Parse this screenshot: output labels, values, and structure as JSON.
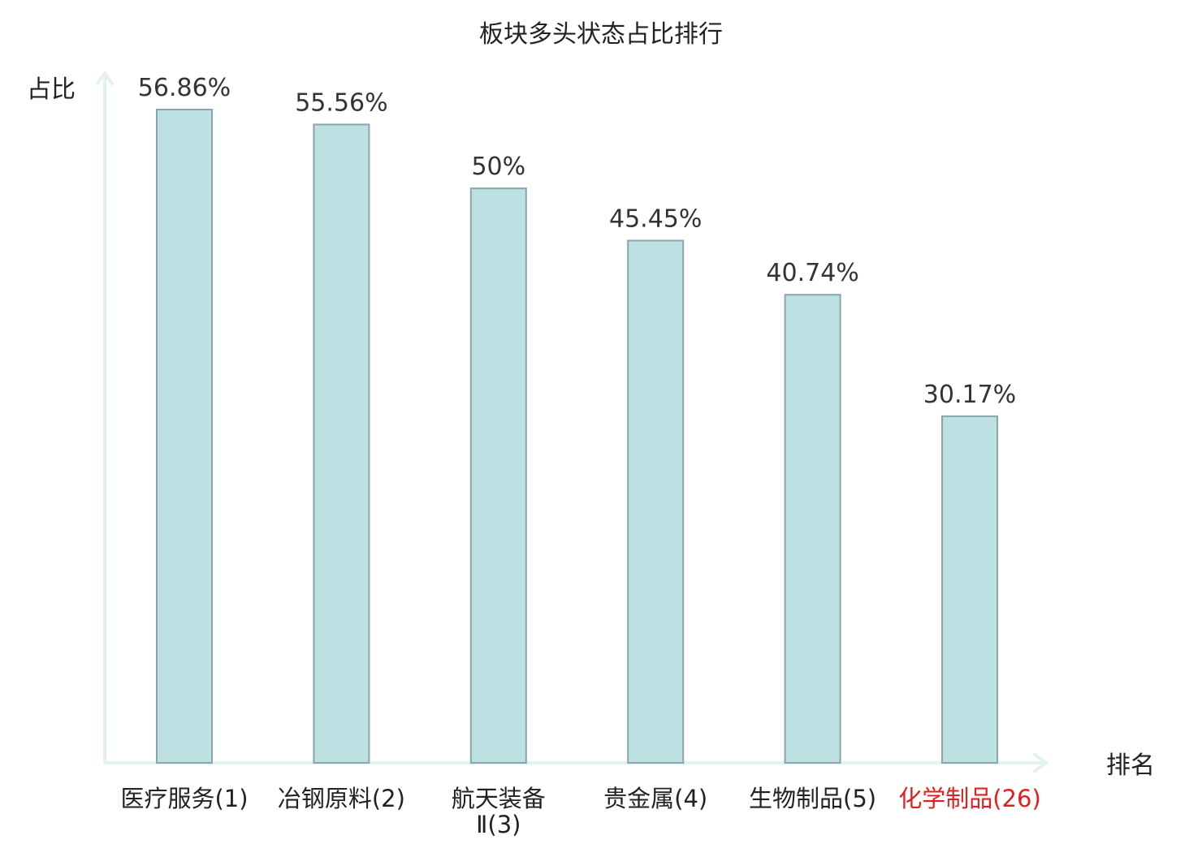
{
  "chart_data": {
    "type": "bar",
    "title": "板块多头状态占比排行",
    "ylabel": "占比",
    "xlabel": "排名",
    "ylim": [
      0,
      60
    ],
    "grid": false,
    "legend": "none",
    "categories": [
      {
        "name": "医疗服务",
        "rank": "(1)"
      },
      {
        "name": "冶钢原料",
        "rank": "(2)"
      },
      {
        "name": "航天装备",
        "rank": "Ⅱ(3)"
      },
      {
        "name": "贵金属",
        "rank": "(4)"
      },
      {
        "name": "生物制品",
        "rank": "(5)"
      },
      {
        "name": "化学制品",
        "rank": "(26)"
      }
    ],
    "values": [
      56.86,
      55.56,
      50,
      45.45,
      40.74,
      30.17
    ],
    "value_labels": [
      "56.86%",
      "55.56%",
      "50%",
      "45.45%",
      "40.74%",
      "30.17%"
    ],
    "highlight_index": 5
  },
  "colors": {
    "bar_fill": "#bde0e3",
    "bar_stroke": "#8aa6aa",
    "axis": "#e0f2f1",
    "text": "#222222",
    "highlight": "#e02020"
  }
}
